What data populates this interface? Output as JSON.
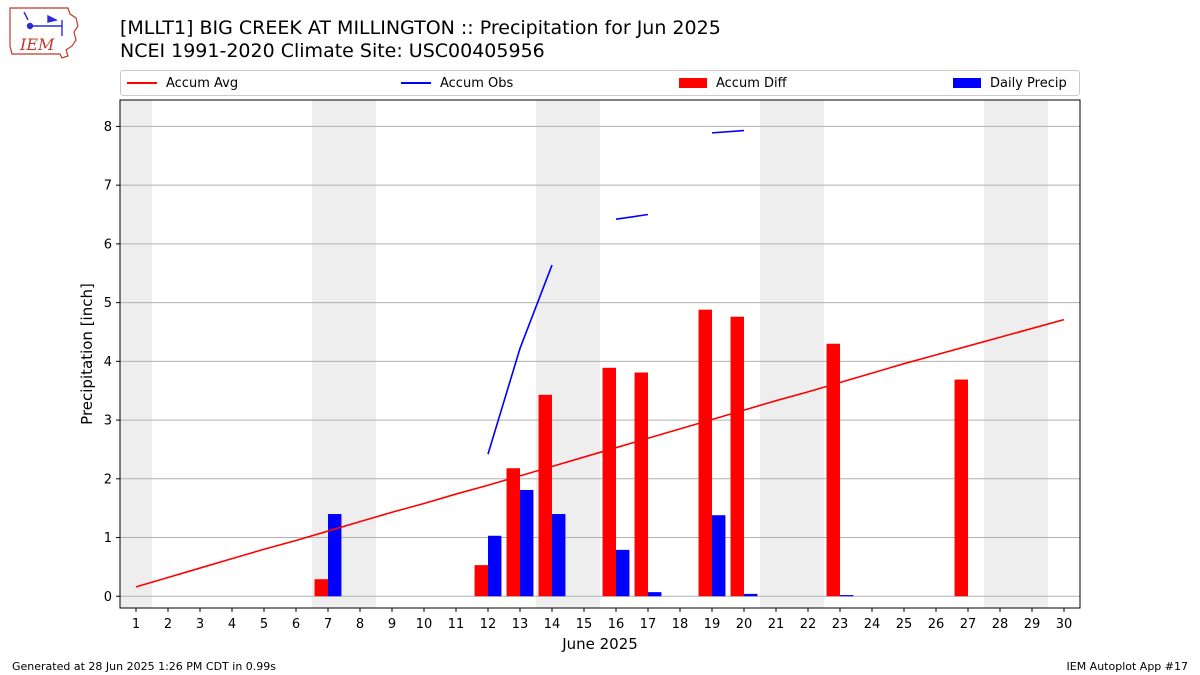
{
  "header": {
    "logo_text": "IEM",
    "title_line1": "[MLLT1] BIG CREEK  AT MILLINGTON :: Precipitation for Jun 2025",
    "title_line2": "NCEI 1991-2020 Climate Site: USC00405956"
  },
  "footer": {
    "generated": "Generated at 28 Jun 2025 1:26 PM CDT in 0.99s",
    "app": "IEM Autoplot App #17"
  },
  "colors": {
    "accum_avg": "#ff0000",
    "accum_obs": "#0000ff",
    "accum_diff": "#ff0000",
    "daily_precip": "#0000ff",
    "weekend_shade": "#eeeeee",
    "grid": "#b0b0b0"
  },
  "chart_data": {
    "type": "bar",
    "xlabel": "June 2025",
    "ylabel": "Precipitation [inch]",
    "ylim": [
      -0.2,
      8.45
    ],
    "yticks": [
      0,
      1,
      2,
      3,
      4,
      5,
      6,
      7,
      8
    ],
    "xlim": [
      0.5,
      30.5
    ],
    "grid": "horizontal",
    "legend_placement": "top",
    "legend": [
      "Accum Avg",
      "Accum Obs",
      "Accum Diff",
      "Daily Precip"
    ],
    "days": [
      1,
      2,
      3,
      4,
      5,
      6,
      7,
      8,
      9,
      10,
      11,
      12,
      13,
      14,
      15,
      16,
      17,
      18,
      19,
      20,
      21,
      22,
      23,
      24,
      25,
      26,
      27,
      28,
      29,
      30
    ],
    "weekend_days": [
      1,
      7,
      8,
      14,
      15,
      21,
      22,
      28,
      29
    ],
    "accum_avg": [
      0.16,
      0.32,
      0.48,
      0.64,
      0.8,
      0.95,
      1.11,
      1.27,
      1.43,
      1.58,
      1.74,
      1.89,
      2.05,
      2.21,
      2.37,
      2.53,
      2.69,
      2.85,
      3.01,
      3.17,
      3.33,
      3.48,
      3.64,
      3.8,
      3.96,
      4.11,
      4.26,
      4.41,
      4.56,
      4.71
    ],
    "accum_obs_segments": [
      {
        "x": [
          12,
          13,
          14
        ],
        "y": [
          2.42,
          4.22,
          5.64
        ]
      },
      {
        "x": [
          16,
          17
        ],
        "y": [
          6.42,
          6.5
        ]
      },
      {
        "x": [
          19,
          20
        ],
        "y": [
          7.89,
          7.93
        ]
      }
    ],
    "accum_diff": [
      {
        "day": 7,
        "value": 0.29
      },
      {
        "day": 12,
        "value": 0.53
      },
      {
        "day": 13,
        "value": 2.18
      },
      {
        "day": 14,
        "value": 3.43
      },
      {
        "day": 16,
        "value": 3.89
      },
      {
        "day": 17,
        "value": 3.81
      },
      {
        "day": 19,
        "value": 4.88
      },
      {
        "day": 20,
        "value": 4.76
      },
      {
        "day": 23,
        "value": 4.3
      },
      {
        "day": 27,
        "value": 3.69
      }
    ],
    "daily_precip": [
      {
        "day": 7,
        "value": 1.4
      },
      {
        "day": 12,
        "value": 1.03
      },
      {
        "day": 13,
        "value": 1.81
      },
      {
        "day": 14,
        "value": 1.4
      },
      {
        "day": 16,
        "value": 0.79
      },
      {
        "day": 17,
        "value": 0.07
      },
      {
        "day": 19,
        "value": 1.38
      },
      {
        "day": 20,
        "value": 0.04
      },
      {
        "day": 23,
        "value": 0.02
      }
    ]
  }
}
